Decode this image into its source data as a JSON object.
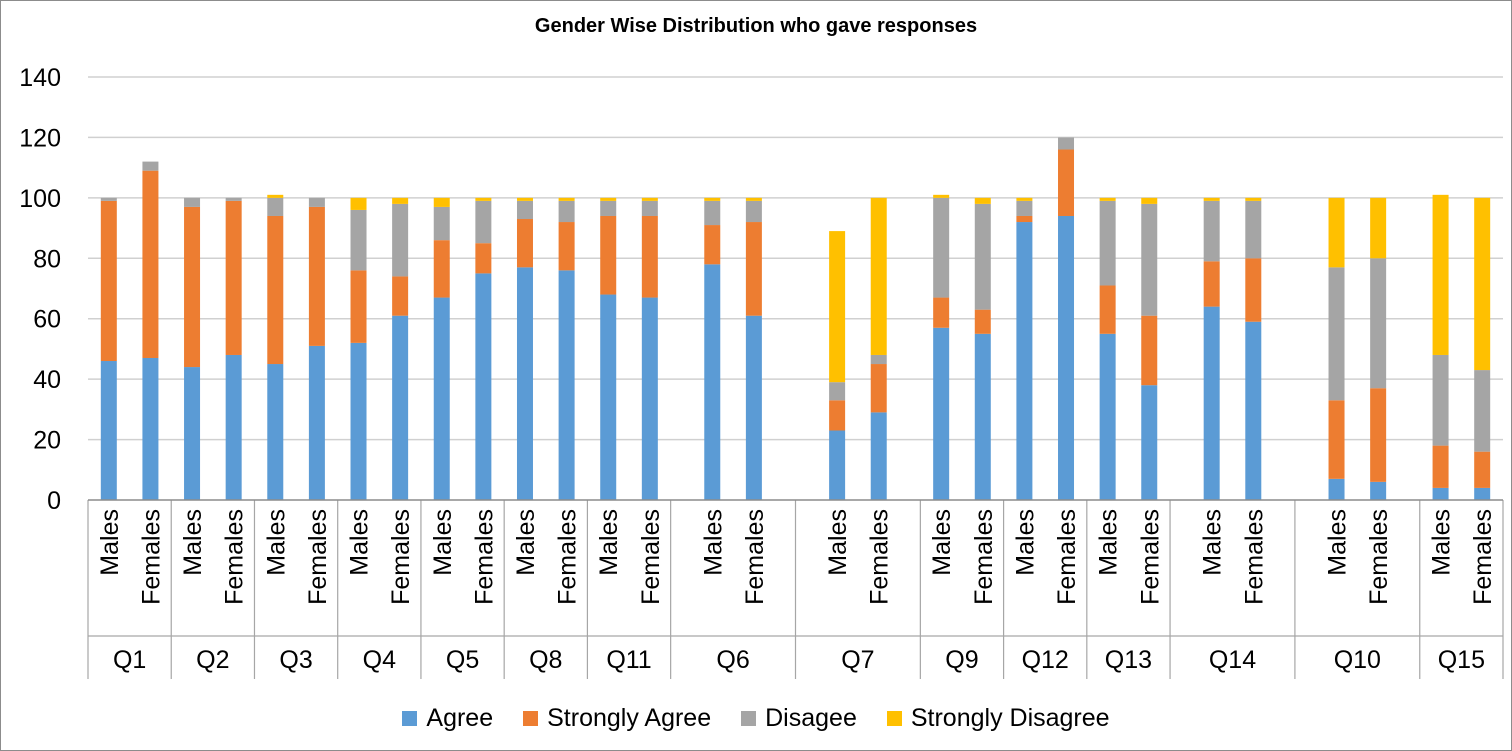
{
  "chart_data": {
    "type": "bar",
    "stacked": true,
    "title": "Gender Wise Distribution who gave responses",
    "ylim": [
      0,
      140
    ],
    "yticks": [
      0,
      20,
      40,
      60,
      80,
      100,
      120,
      140
    ],
    "grid": true,
    "legend_position": "bottom",
    "group_size": [
      2,
      2,
      2,
      2,
      2,
      2,
      2,
      3,
      3,
      2,
      2,
      2,
      3,
      3,
      2
    ],
    "groups": [
      "Q1",
      "Q2",
      "Q3",
      "Q4",
      "Q5",
      "Q8",
      "Q11",
      "Q6",
      "Q7",
      "Q9",
      "Q12",
      "Q13",
      "Q14",
      "Q10",
      "Q15"
    ],
    "subcategories": [
      "Males",
      "Females"
    ],
    "series": [
      {
        "name": "Agree",
        "color": "#5B9BD5",
        "values": [
          [
            46,
            47
          ],
          [
            44,
            48
          ],
          [
            45,
            51
          ],
          [
            52,
            61
          ],
          [
            67,
            75
          ],
          [
            77,
            76
          ],
          [
            68,
            67
          ],
          [
            78,
            61
          ],
          [
            23,
            29
          ],
          [
            57,
            55
          ],
          [
            92,
            94
          ],
          [
            55,
            38
          ],
          [
            64,
            59
          ],
          [
            7,
            6
          ],
          [
            4,
            4
          ]
        ]
      },
      {
        "name": "Strongly Agree",
        "color": "#ED7D31",
        "values": [
          [
            53,
            62
          ],
          [
            53,
            51
          ],
          [
            49,
            46
          ],
          [
            24,
            13
          ],
          [
            19,
            10
          ],
          [
            16,
            16
          ],
          [
            26,
            27
          ],
          [
            13,
            31
          ],
          [
            10,
            16
          ],
          [
            10,
            8
          ],
          [
            2,
            22
          ],
          [
            16,
            23
          ],
          [
            15,
            21
          ],
          [
            26,
            31
          ],
          [
            14,
            12
          ]
        ]
      },
      {
        "name": "Disagee",
        "color": "#A5A5A5",
        "values": [
          [
            1,
            3
          ],
          [
            3,
            1
          ],
          [
            6,
            3
          ],
          [
            20,
            24
          ],
          [
            11,
            14
          ],
          [
            6,
            7
          ],
          [
            5,
            5
          ],
          [
            8,
            7
          ],
          [
            6,
            3
          ],
          [
            33,
            35
          ],
          [
            5,
            4
          ],
          [
            28,
            37
          ],
          [
            20,
            19
          ],
          [
            44,
            43
          ],
          [
            30,
            27
          ]
        ]
      },
      {
        "name": "Strongly Disagree",
        "color": "#FFC000",
        "values": [
          [
            0,
            0
          ],
          [
            0,
            0
          ],
          [
            1,
            0
          ],
          [
            4,
            2
          ],
          [
            3,
            1
          ],
          [
            1,
            1
          ],
          [
            1,
            1
          ],
          [
            1,
            1
          ],
          [
            50,
            52
          ],
          [
            1,
            2
          ],
          [
            1,
            0
          ],
          [
            1,
            2
          ],
          [
            1,
            1
          ],
          [
            23,
            20
          ],
          [
            53,
            57
          ]
        ]
      }
    ]
  }
}
